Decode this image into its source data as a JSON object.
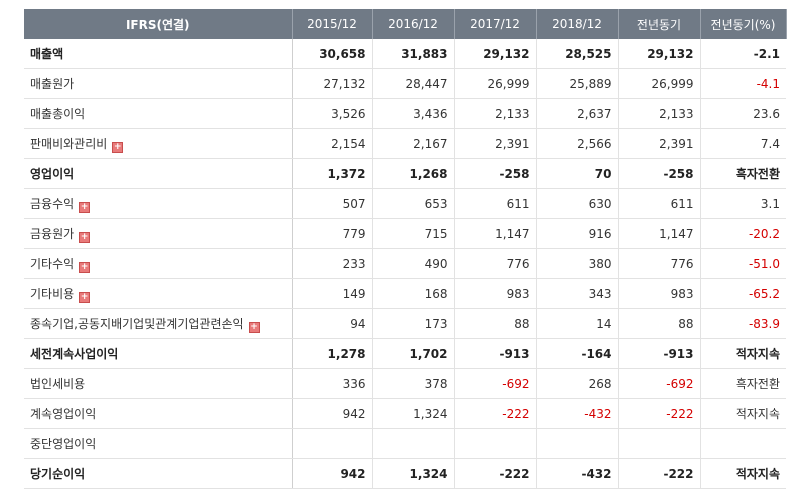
{
  "table": {
    "header": {
      "item_label": "IFRS(연결)",
      "columns": [
        "2015/12",
        "2016/12",
        "2017/12",
        "2018/12",
        "전년동기",
        "전년동기(%)"
      ]
    },
    "rows": [
      {
        "label": "매출액",
        "bold": true,
        "expand": false,
        "values": [
          "30,658",
          "31,883",
          "29,132",
          "28,525",
          "29,132",
          "-2.1"
        ]
      },
      {
        "label": "매출원가",
        "bold": false,
        "expand": false,
        "values": [
          "27,132",
          "28,447",
          "26,999",
          "25,889",
          "26,999",
          "-4.1"
        ]
      },
      {
        "label": "매출총이익",
        "bold": false,
        "expand": false,
        "values": [
          "3,526",
          "3,436",
          "2,133",
          "2,637",
          "2,133",
          "23.6"
        ]
      },
      {
        "label": "판매비와관리비",
        "bold": false,
        "expand": true,
        "values": [
          "2,154",
          "2,167",
          "2,391",
          "2,566",
          "2,391",
          "7.4"
        ]
      },
      {
        "label": "영업이익",
        "bold": true,
        "expand": false,
        "values": [
          "1,372",
          "1,268",
          "-258",
          "70",
          "-258",
          "흑자전환"
        ]
      },
      {
        "label": "금융수익",
        "bold": false,
        "expand": true,
        "values": [
          "507",
          "653",
          "611",
          "630",
          "611",
          "3.1"
        ]
      },
      {
        "label": "금융원가",
        "bold": false,
        "expand": true,
        "values": [
          "779",
          "715",
          "1,147",
          "916",
          "1,147",
          "-20.2"
        ]
      },
      {
        "label": "기타수익",
        "bold": false,
        "expand": true,
        "values": [
          "233",
          "490",
          "776",
          "380",
          "776",
          "-51.0"
        ]
      },
      {
        "label": "기타비용",
        "bold": false,
        "expand": true,
        "values": [
          "149",
          "168",
          "983",
          "343",
          "983",
          "-65.2"
        ]
      },
      {
        "label": "종속기업,공동지배기업및관계기업관련손익",
        "bold": false,
        "expand": true,
        "values": [
          "94",
          "173",
          "88",
          "14",
          "88",
          "-83.9"
        ]
      },
      {
        "label": "세전계속사업이익",
        "bold": true,
        "expand": false,
        "values": [
          "1,278",
          "1,702",
          "-913",
          "-164",
          "-913",
          "적자지속"
        ]
      },
      {
        "label": "법인세비용",
        "bold": false,
        "expand": false,
        "values": [
          "336",
          "378",
          "-692",
          "268",
          "-692",
          "흑자전환"
        ]
      },
      {
        "label": "계속영업이익",
        "bold": false,
        "expand": false,
        "values": [
          "942",
          "1,324",
          "-222",
          "-432",
          "-222",
          "적자지속"
        ]
      },
      {
        "label": "중단영업이익",
        "bold": false,
        "expand": false,
        "values": [
          "",
          "",
          "",
          "",
          "",
          ""
        ]
      },
      {
        "label": "당기순이익",
        "bold": true,
        "expand": false,
        "values": [
          "942",
          "1,324",
          "-222",
          "-432",
          "-222",
          "적자지속"
        ]
      }
    ]
  },
  "colors": {
    "header_bg": "#707a86",
    "negative": "#d40000",
    "expand_icon": "#e87a7a"
  },
  "icons": {
    "expand": "plus-square-icon"
  }
}
